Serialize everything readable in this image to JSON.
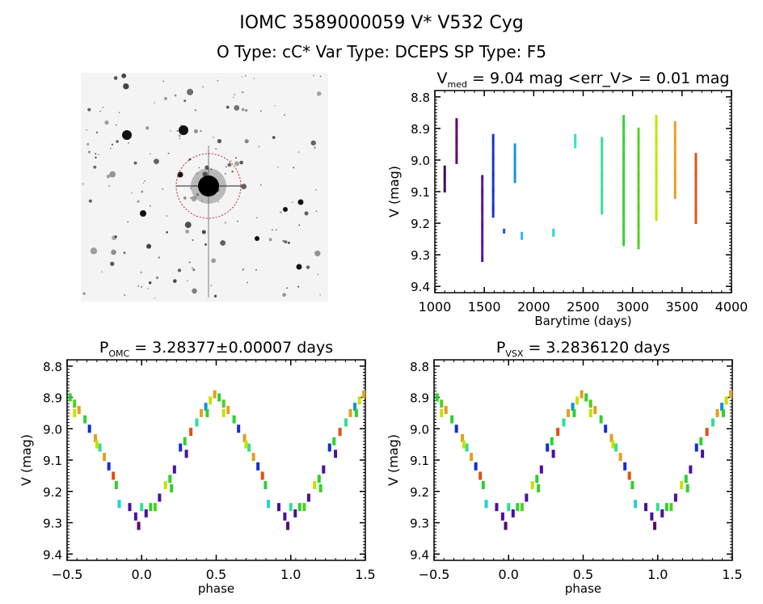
{
  "header": {
    "title": "IOMC 3589000059    V* V532 Cyg",
    "subtitle": "O Type: cC*  Var Type: DCEPS  SP Type: F5"
  },
  "chart_data": [
    {
      "type": "image",
      "content": "sky-field-cutout",
      "marker_color": "#dd2020"
    },
    {
      "type": "scatter",
      "title_main": "V",
      "title_sub": "med",
      "title_rest": " = 9.04 mag <err_V> = 0.01 mag",
      "xlabel": "Barytime (days)",
      "ylabel": "V (mag)",
      "xlim": [
        1000,
        4000
      ],
      "ylim": [
        8.78,
        9.42
      ],
      "y_inverted": true,
      "xticks": [
        1000,
        1500,
        2000,
        2500,
        3000,
        3500,
        4000
      ],
      "yticks": [
        "8.8",
        "8.9",
        "9.0",
        "9.1",
        "9.2",
        "9.3",
        "9.4"
      ],
      "series_ranges": [
        {
          "t": 1100,
          "v": [
            9.02,
            9.1
          ],
          "color": "#3a0050"
        },
        {
          "t": 1220,
          "v": [
            8.87,
            9.01
          ],
          "color": "#5a0070"
        },
        {
          "t": 1480,
          "v": [
            9.05,
            9.32
          ],
          "color": "#4a10a0"
        },
        {
          "t": 1590,
          "v": [
            8.92,
            9.18
          ],
          "color": "#1030d0"
        },
        {
          "t": 1700,
          "v": [
            9.22,
            9.23
          ],
          "color": "#1050e0"
        },
        {
          "t": 1810,
          "v": [
            8.95,
            9.07
          ],
          "color": "#1090e0"
        },
        {
          "t": 1880,
          "v": [
            9.23,
            9.25
          ],
          "color": "#20b8f0"
        },
        {
          "t": 2200,
          "v": [
            9.22,
            9.24
          ],
          "color": "#20d0e0"
        },
        {
          "t": 2420,
          "v": [
            8.92,
            8.96
          ],
          "color": "#30e0c0"
        },
        {
          "t": 2690,
          "v": [
            8.93,
            9.17
          ],
          "color": "#30e090"
        },
        {
          "t": 2910,
          "v": [
            8.86,
            9.27
          ],
          "color": "#30d030"
        },
        {
          "t": 3060,
          "v": [
            8.9,
            9.28
          ],
          "color": "#50d020"
        },
        {
          "t": 3240,
          "v": [
            8.86,
            9.19
          ],
          "color": "#c8e000"
        },
        {
          "t": 3430,
          "v": [
            8.88,
            9.12
          ],
          "color": "#e0a020"
        },
        {
          "t": 3640,
          "v": [
            8.98,
            9.2
          ],
          "color": "#e05010"
        }
      ]
    },
    {
      "type": "scatter",
      "title_main": "P",
      "title_sub": "OMC",
      "title_rest": " = 3.28377±0.00007 days",
      "xlabel": "phase",
      "ylabel": "V (mag)",
      "xlim": [
        -0.5,
        1.5
      ],
      "ylim": [
        8.78,
        9.42
      ],
      "y_inverted": true,
      "xticks": [
        "-0.5",
        "0.0",
        "0.5",
        "1.0",
        "1.5"
      ],
      "yticks": [
        "8.8",
        "8.9",
        "9.0",
        "9.1",
        "9.2",
        "9.3",
        "9.4"
      ]
    },
    {
      "type": "scatter",
      "title_main": "P",
      "title_sub": "VSX",
      "title_rest": " = 3.2836120 days",
      "xlabel": "phase",
      "ylabel": "V (mag)",
      "xlim": [
        -0.5,
        1.5
      ],
      "ylim": [
        8.78,
        9.42
      ],
      "y_inverted": true,
      "xticks": [
        "-0.5",
        "0.0",
        "0.5",
        "1.0",
        "1.5"
      ],
      "yticks": [
        "8.8",
        "8.9",
        "9.0",
        "9.1",
        "9.2",
        "9.3",
        "9.4"
      ]
    }
  ],
  "phase_curve": [
    [
      0.0,
      9.25,
      "#30e090"
    ],
    [
      0.03,
      9.27,
      "#4a10a0"
    ],
    [
      0.06,
      9.25,
      "#30d030"
    ],
    [
      0.09,
      9.25,
      "#50d020"
    ],
    [
      0.12,
      9.22,
      "#4a10a0"
    ],
    [
      0.16,
      9.18,
      "#c8e000"
    ],
    [
      0.19,
      9.16,
      "#30d030"
    ],
    [
      0.22,
      9.13,
      "#4a10a0"
    ],
    [
      0.26,
      9.06,
      "#1030d0"
    ],
    [
      0.29,
      9.04,
      "#30d030"
    ],
    [
      0.33,
      9.01,
      "#e05010"
    ],
    [
      0.37,
      8.98,
      "#30e090"
    ],
    [
      0.4,
      8.95,
      "#e0a020"
    ],
    [
      0.43,
      8.93,
      "#1090e0"
    ],
    [
      0.46,
      8.91,
      "#c8e000"
    ],
    [
      0.49,
      8.89,
      "#e0a020"
    ],
    [
      0.52,
      8.9,
      "#30d030"
    ],
    [
      0.55,
      8.92,
      "#50d020"
    ],
    [
      0.58,
      8.94,
      "#e0a020"
    ],
    [
      0.62,
      8.97,
      "#30d030"
    ],
    [
      0.65,
      9.0,
      "#1030d0"
    ],
    [
      0.69,
      9.03,
      "#e0a020"
    ],
    [
      0.72,
      9.06,
      "#30e090"
    ],
    [
      0.75,
      9.09,
      "#e0a020"
    ],
    [
      0.78,
      9.12,
      "#1030d0"
    ],
    [
      0.81,
      9.15,
      "#e05010"
    ],
    [
      0.83,
      9.18,
      "#30d030"
    ],
    [
      0.85,
      9.24,
      "#20d0e0"
    ],
    [
      0.92,
      9.25,
      "#4a10a0"
    ],
    [
      0.96,
      9.28,
      "#4a10a0"
    ],
    [
      0.98,
      9.31,
      "#5a0070"
    ],
    [
      0.7,
      9.05,
      "#c8e000"
    ],
    [
      0.44,
      8.95,
      "#30d030"
    ],
    [
      0.3,
      9.08,
      "#4a10a0"
    ],
    [
      0.2,
      9.19,
      "#30d030"
    ],
    [
      0.55,
      8.95,
      "#c8e000"
    ]
  ]
}
